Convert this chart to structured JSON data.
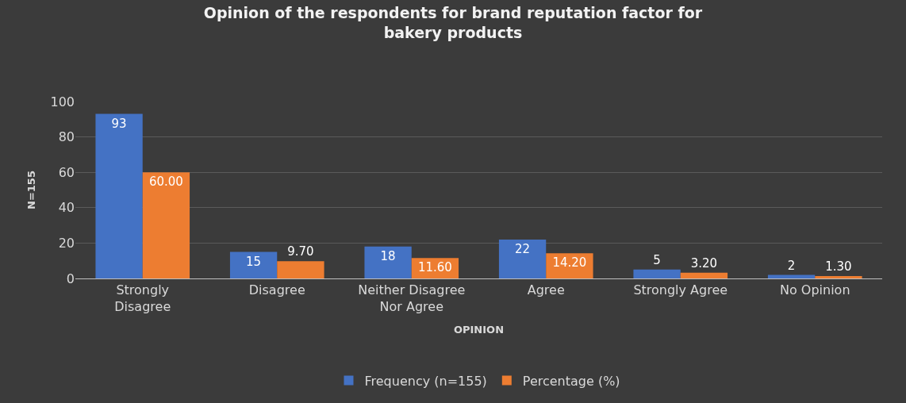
{
  "chart_data": {
    "type": "bar",
    "title": "Opinion of the respondents for brand reputation factor for bakery products",
    "xlabel": "OPINION",
    "ylabel": "N=155",
    "categories": [
      "Strongly Disagree",
      "Disagree",
      "Neither Disagree Nor Agree",
      "Agree",
      "Strongly Agree",
      "No Opinion"
    ],
    "series": [
      {
        "name": "Frequency (n=155)",
        "color": "#4472c4",
        "values": [
          93,
          15,
          18,
          22,
          5,
          2
        ],
        "value_labels": [
          "93",
          "15",
          "18",
          "22",
          "5",
          "2"
        ]
      },
      {
        "name": "Percentage (%)",
        "color": "#ed7d31",
        "values": [
          60.0,
          9.7,
          11.6,
          14.2,
          3.2,
          1.3
        ],
        "value_labels": [
          "60.00",
          "9.70",
          "11.60",
          "14.20",
          "3.20",
          "1.30"
        ]
      }
    ],
    "ylim": [
      0,
      100
    ],
    "yticks": [
      0,
      20,
      40,
      60,
      80,
      100
    ],
    "grid": "y",
    "legend": "bottom"
  }
}
